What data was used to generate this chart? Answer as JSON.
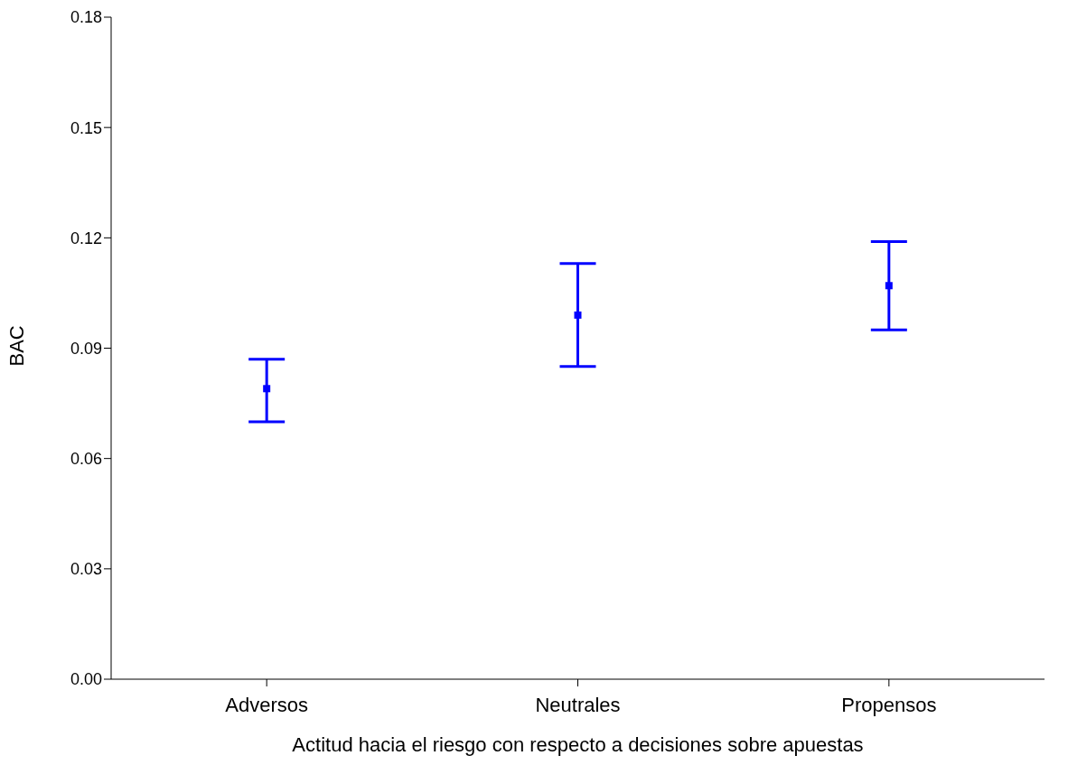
{
  "chart_data": {
    "type": "scatter",
    "xlabel": "Actitud hacia el riesgo con respecto a decisiones sobre apuestas",
    "ylabel": "BAC",
    "categories": [
      "Adversos",
      "Neutrales",
      "Propensos"
    ],
    "series": [
      {
        "color": "#0000ff",
        "values": [
          0.079,
          0.099,
          0.107
        ],
        "errors": [
          [
            0.07,
            0.087
          ],
          [
            0.085,
            0.113
          ],
          [
            0.095,
            0.119
          ]
        ]
      }
    ],
    "ylim": [
      0,
      0.18
    ],
    "yticks": [
      {
        "value": 0,
        "label": "0.00"
      },
      {
        "value": 0.03,
        "label": "0.03"
      },
      {
        "value": 0.06,
        "label": "0.06"
      },
      {
        "value": 0.09,
        "label": "0.09"
      },
      {
        "value": 0.12,
        "label": "0.12"
      },
      {
        "value": 0.15,
        "label": "0.15"
      },
      {
        "value": 0.18,
        "label": "0.18"
      }
    ],
    "grid": false,
    "marker": "square"
  }
}
